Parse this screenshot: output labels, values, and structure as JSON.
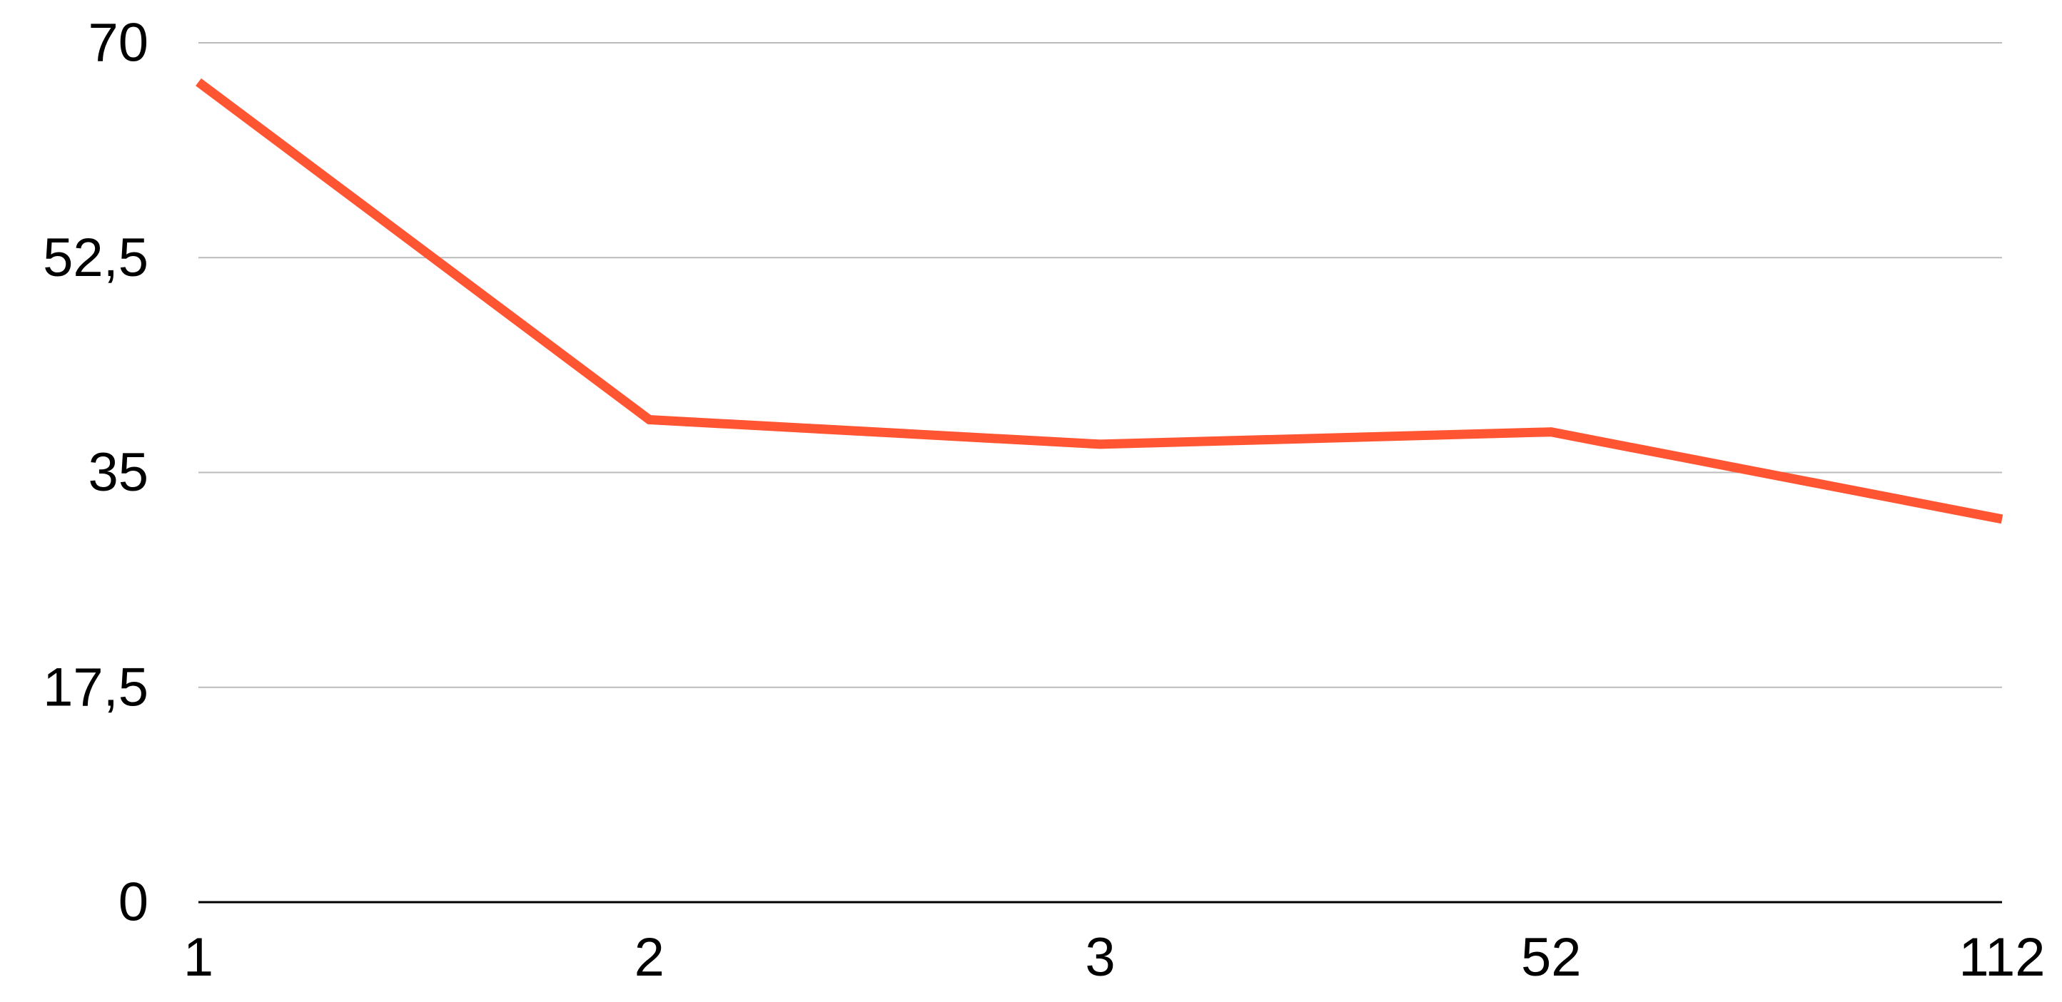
{
  "chart_data": {
    "type": "line",
    "categories": [
      "1",
      "2",
      "3",
      "52",
      "112"
    ],
    "series": [
      {
        "values": [
          66.8,
          39.3,
          37.3,
          38.3,
          31.2
        ]
      }
    ],
    "ylim": [
      0,
      70
    ],
    "yticks": [
      "0",
      "17,5",
      "35",
      "52,5",
      "70"
    ],
    "ytick_values": [
      0,
      17.5,
      35,
      52.5,
      70
    ],
    "grid": true,
    "legend": "none",
    "colors": {
      "line": "#FF5533",
      "grid": "#BBBBBB",
      "axis": "#000000"
    }
  }
}
